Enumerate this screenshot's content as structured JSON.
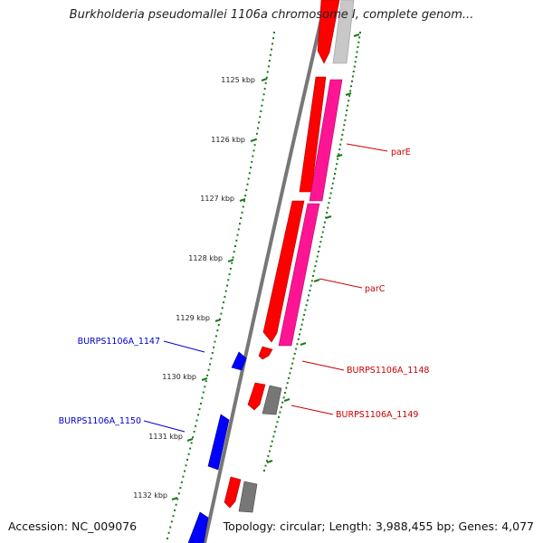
{
  "title": "Burkholderia pseudomallei 1106a chromosome I, complete genom...",
  "footer": {
    "accession": "Accession: NC_009076",
    "summary": "Topology: circular; Length: 3,988,455 bp; Genes: 4,077"
  },
  "colors": {
    "backbone": "#777777",
    "ruler_ticks": "#1a7a1a",
    "forward_gene": "#ff0000",
    "forward_cds": "#ff1493",
    "reverse_gene": "#0000ff",
    "reverse_gene_label": "#0000cc",
    "other_gene": "#777777",
    "faded_gene": "#c8c8c8"
  },
  "ruler": {
    "labels": [
      "1125 kbp",
      "1126 kbp",
      "1127 kbp",
      "1128 kbp",
      "1129 kbp",
      "1130 kbp",
      "1131 kbp",
      "1132 kbp"
    ]
  },
  "gene_labels": {
    "parE": "parE",
    "parC": "parC",
    "BURPS1106A_1147": "BURPS1106A_1147",
    "BURPS1106A_1148": "BURPS1106A_1148",
    "BURPS1106A_1149": "BURPS1106A_1149",
    "BURPS1106A_1150": "BURPS1106A_1150"
  }
}
